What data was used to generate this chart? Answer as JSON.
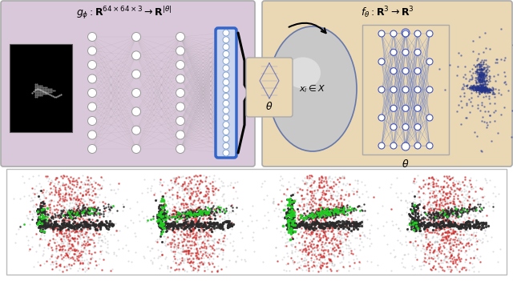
{
  "left_panel_bg": "#d9c8d9",
  "right_panel_bg": "#ead8b4",
  "left_title": "$g_{\\phi}: \\mathbf{R}^{64\\times64\\times3} \\rightarrow \\mathbf{R}^{|\\theta|}$",
  "right_title": "$f_{\\theta}: \\mathbf{R}^3 \\rightarrow \\mathbf{R}^3$",
  "theta_label": "$\\theta$",
  "xi_label": "$x_i \\in X$",
  "blue_highlight": "#3366cc",
  "nn_gray": "#999999",
  "nn_blue": "#4455bb",
  "node_white": "#ffffff"
}
